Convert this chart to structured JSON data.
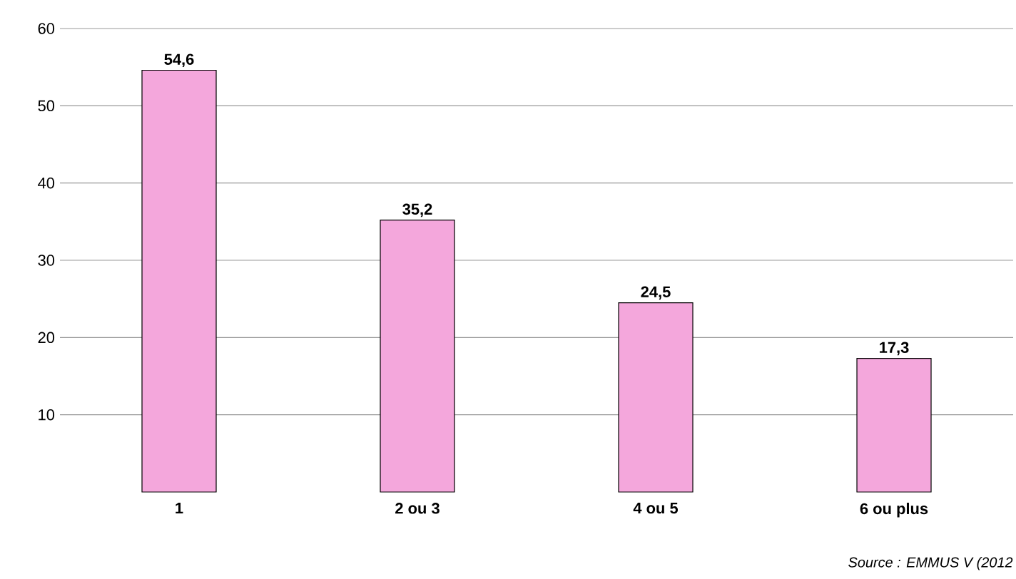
{
  "chart_data": {
    "type": "bar",
    "categories": [
      "1",
      "2 ou 3",
      "4 ou 5",
      "6 ou plus"
    ],
    "values": [
      54.6,
      35.2,
      24.5,
      17.3
    ],
    "value_labels": [
      "54,6",
      "35,2",
      "24,5",
      "17,3"
    ],
    "color": "#f4a7dc",
    "ylim": [
      0,
      60
    ],
    "yticks": [
      10,
      20,
      30,
      40,
      50,
      60
    ],
    "grid": "y",
    "annotations": [
      "Source : EMMUS V (2012"
    ]
  }
}
